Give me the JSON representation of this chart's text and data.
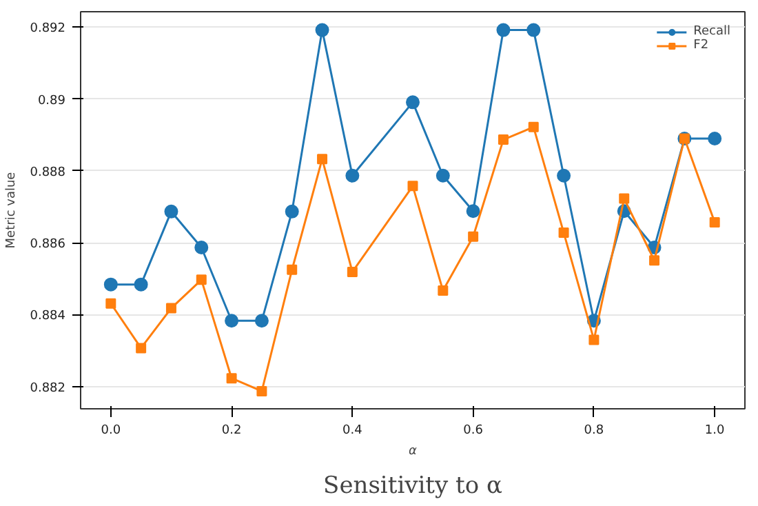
{
  "chart_data": {
    "type": "line",
    "title": "Sensitivity to α",
    "xlabel": "α",
    "ylabel": "Metric value",
    "xlim": [
      -0.05,
      1.05
    ],
    "ylim": [
      0.88138,
      0.89243
    ],
    "xticks": [
      {
        "value": 0,
        "label": "0.0"
      },
      {
        "value": 0.2,
        "label": "0.2"
      },
      {
        "value": 0.4,
        "label": "0.4"
      },
      {
        "value": 0.6,
        "label": "0.6"
      },
      {
        "value": 0.8,
        "label": "0.8"
      },
      {
        "value": 1,
        "label": "1.0"
      }
    ],
    "yticks": [
      0.882,
      0.884,
      0.886,
      0.888,
      0.89,
      0.892
    ],
    "x": [
      0,
      0.05,
      0.1,
      0.15,
      0.2,
      0.25,
      0.3,
      0.35,
      0.4,
      0.5,
      0.55,
      0.6,
      0.65,
      0.7,
      0.75,
      0.8,
      0.85,
      0.9,
      0.95,
      1.0
    ],
    "series": [
      {
        "name": "Recall",
        "color": "#1f77b4",
        "marker": "circle",
        "values": [
          0.88484,
          0.88484,
          0.88687,
          0.88587,
          0.88383,
          0.88383,
          0.88687,
          0.89192,
          0.88787,
          0.88991,
          0.88787,
          0.88688,
          0.89192,
          0.89192,
          0.88787,
          0.88383,
          0.88688,
          0.88587,
          0.8889,
          0.8889
        ]
      },
      {
        "name": "F2",
        "color": "#ff7f0e",
        "marker": "square",
        "values": [
          0.88431,
          0.88307,
          0.88418,
          0.88497,
          0.88223,
          0.88187,
          0.88525,
          0.88833,
          0.88519,
          0.88758,
          0.88467,
          0.88617,
          0.88887,
          0.88922,
          0.88628,
          0.8833,
          0.88723,
          0.88551,
          0.8889,
          0.88657
        ]
      }
    ],
    "grid": "y",
    "legend": "top right",
    "line_style": "solid"
  }
}
